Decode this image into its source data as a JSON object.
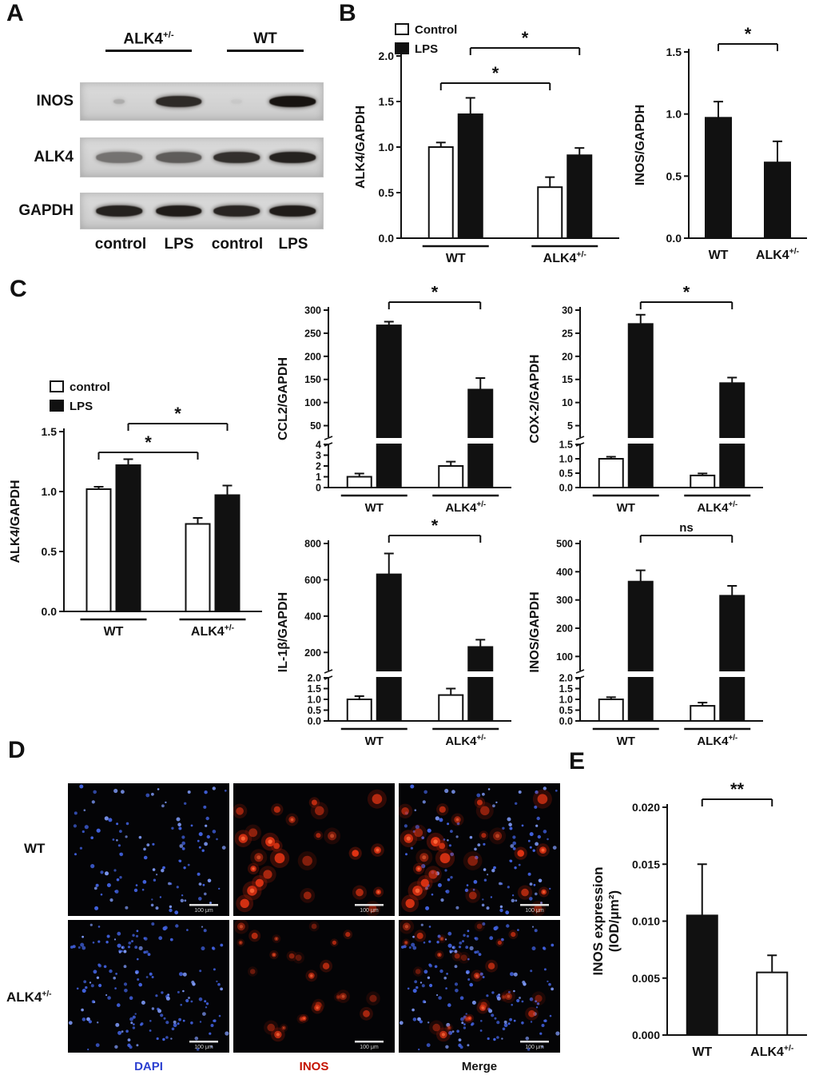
{
  "figure": {
    "background": "#ffffff"
  },
  "panels": {
    "A": {
      "label": "A",
      "groups": [
        "ALK4+/-",
        "WT"
      ],
      "lanes": [
        "control",
        "LPS",
        "control",
        "LPS"
      ],
      "blots": [
        {
          "label": "INOS",
          "bands": [
            0.2,
            0.88,
            0.05,
            1.0
          ]
        },
        {
          "label": "ALK4",
          "bands": [
            0.5,
            0.62,
            0.85,
            0.92
          ]
        },
        {
          "label": "GAPDH",
          "bands": [
            0.92,
            0.95,
            0.9,
            0.95
          ]
        }
      ]
    },
    "B": {
      "label": "B"
    },
    "C": {
      "label": "C"
    },
    "D": {
      "label": "D",
      "rows": [
        {
          "label": "WT",
          "dapi_dots": 110,
          "inos_cells": 26,
          "intensity": 1.0,
          "seed": 9
        },
        {
          "label": "ALK4+/-",
          "dapi_dots": 160,
          "inos_cells": 24,
          "intensity": 0.75,
          "seed": 21
        }
      ],
      "columns": [
        {
          "label": "DAPI",
          "color": "#2b3fd0"
        },
        {
          "label": "INOS",
          "color": "#c41200"
        },
        {
          "label": "Merge",
          "color": "#111111"
        }
      ],
      "scale_label": "100 μm"
    },
    "E": {
      "label": "E"
    }
  },
  "chart_data": [
    {
      "id": "B1",
      "panel": "B",
      "type": "bar",
      "ylabel": "ALK4/GAPDH",
      "legend": [
        {
          "label": "Control",
          "fill": "#ffffff"
        },
        {
          "label": "LPS",
          "fill": "#111111"
        }
      ],
      "groups": [
        "WT",
        "ALK4+/-"
      ],
      "series": [
        {
          "name": "Control",
          "fill": "#ffffff",
          "values": [
            1.0,
            0.56
          ],
          "errors": [
            0.05,
            0.11
          ]
        },
        {
          "name": "LPS",
          "fill": "#111111",
          "values": [
            1.36,
            0.91
          ],
          "errors": [
            0.18,
            0.08
          ]
        }
      ],
      "yticks": [
        "0.0",
        "0.5",
        "1.0",
        "1.5",
        "2.0"
      ],
      "ylim": [
        0,
        2.0
      ],
      "sig": [
        {
          "from": [
            0,
            1
          ],
          "to": [
            1,
            1
          ],
          "label": "*",
          "level": 0
        },
        {
          "from": [
            0,
            0
          ],
          "to": [
            1,
            0
          ],
          "label": "*",
          "level": 1
        }
      ],
      "group_lines": true
    },
    {
      "id": "B2",
      "panel": "B",
      "type": "bar",
      "ylabel": "INOS/GAPDH",
      "groups": [
        "WT",
        "ALK4+/-"
      ],
      "series": [
        {
          "name": "INOS",
          "fills": [
            "#111111",
            "#111111"
          ],
          "values": [
            0.97,
            0.61
          ],
          "errors": [
            0.13,
            0.17
          ]
        }
      ],
      "yticks": [
        "0.0",
        "0.5",
        "1.0",
        "1.5"
      ],
      "ylim": [
        0,
        1.5
      ],
      "sig": [
        {
          "from": [
            0,
            0
          ],
          "to": [
            1,
            0
          ],
          "label": "*",
          "level": 0
        }
      ],
      "group_lines": false
    },
    {
      "id": "C1",
      "panel": "C",
      "type": "bar",
      "ylabel": "ALK4/GAPDH",
      "legend": [
        {
          "label": "control",
          "fill": "#ffffff"
        },
        {
          "label": "LPS",
          "fill": "#111111"
        }
      ],
      "groups": [
        "WT",
        "ALK4+/-"
      ],
      "series": [
        {
          "name": "control",
          "fill": "#ffffff",
          "values": [
            1.02,
            0.73
          ],
          "errors": [
            0.02,
            0.05
          ]
        },
        {
          "name": "LPS",
          "fill": "#111111",
          "values": [
            1.22,
            0.97
          ],
          "errors": [
            0.05,
            0.08
          ]
        }
      ],
      "yticks": [
        "0.0",
        "0.5",
        "1.0",
        "1.5"
      ],
      "ylim": [
        0,
        1.5
      ],
      "sig": [
        {
          "from": [
            0,
            1
          ],
          "to": [
            1,
            1
          ],
          "label": "*",
          "level": 0
        },
        {
          "from": [
            0,
            0
          ],
          "to": [
            1,
            0
          ],
          "label": "*",
          "level": 1
        }
      ],
      "group_lines": true
    },
    {
      "id": "C2",
      "panel": "C",
      "type": "bar",
      "ylabel": "CCL2/GAPDH",
      "groups": [
        "WT",
        "ALK4+/-"
      ],
      "series": [
        {
          "name": "control",
          "fill": "#ffffff",
          "values": [
            1.0,
            2.0
          ],
          "errors": [
            0.3,
            0.4
          ]
        },
        {
          "name": "LPS",
          "fill": "#111111",
          "values": [
            267,
            128
          ],
          "errors": [
            8,
            25
          ]
        }
      ],
      "broken_axis": {
        "lower_ticks": [
          "0",
          "1",
          "2",
          "3",
          "4"
        ],
        "lower_max": 4,
        "upper_ticks": [
          "50",
          "100",
          "150",
          "200",
          "250",
          "300"
        ],
        "upper_base": 25,
        "upper_max": 300
      },
      "sig": [
        {
          "from": [
            0,
            1
          ],
          "to": [
            1,
            1
          ],
          "label": "*",
          "level": 0
        }
      ],
      "group_lines": true
    },
    {
      "id": "C3",
      "panel": "C",
      "type": "bar",
      "ylabel": "COX-2/GAPDH",
      "groups": [
        "WT",
        "ALK4+/-"
      ],
      "series": [
        {
          "name": "control",
          "fill": "#ffffff",
          "values": [
            1.0,
            0.42
          ],
          "errors": [
            0.07,
            0.07
          ]
        },
        {
          "name": "LPS",
          "fill": "#111111",
          "values": [
            27,
            14.2
          ],
          "errors": [
            2,
            1.2
          ]
        }
      ],
      "broken_axis": {
        "lower_ticks": [
          "0.0",
          "0.5",
          "1.0",
          "1.5"
        ],
        "lower_max": 1.5,
        "upper_ticks": [
          "5",
          "10",
          "15",
          "20",
          "25",
          "30"
        ],
        "upper_base": 2.5,
        "upper_max": 30
      },
      "sig": [
        {
          "from": [
            0,
            1
          ],
          "to": [
            1,
            1
          ],
          "label": "*",
          "level": 0
        }
      ],
      "group_lines": true
    },
    {
      "id": "C4",
      "panel": "C",
      "type": "bar",
      "ylabel": "IL-1β/GAPDH",
      "groups": [
        "WT",
        "ALK4+/-"
      ],
      "series": [
        {
          "name": "control",
          "fill": "#ffffff",
          "values": [
            1.0,
            1.2
          ],
          "errors": [
            0.15,
            0.3
          ]
        },
        {
          "name": "LPS",
          "fill": "#111111",
          "values": [
            630,
            230
          ],
          "errors": [
            115,
            40
          ]
        }
      ],
      "broken_axis": {
        "lower_ticks": [
          "0.0",
          "0.5",
          "1.0",
          "1.5",
          "2.0"
        ],
        "lower_max": 2.0,
        "upper_ticks": [
          "200",
          "400",
          "600",
          "800"
        ],
        "upper_base": 100,
        "upper_max": 800
      },
      "sig": [
        {
          "from": [
            0,
            1
          ],
          "to": [
            1,
            1
          ],
          "label": "*",
          "level": 0
        }
      ],
      "group_lines": true
    },
    {
      "id": "C5",
      "panel": "C",
      "type": "bar",
      "ylabel": "INOS/GAPDH",
      "groups": [
        "WT",
        "ALK4+/-"
      ],
      "series": [
        {
          "name": "control",
          "fill": "#ffffff",
          "values": [
            1.0,
            0.7
          ],
          "errors": [
            0.1,
            0.15
          ]
        },
        {
          "name": "LPS",
          "fill": "#111111",
          "values": [
            365,
            315
          ],
          "errors": [
            40,
            35
          ]
        }
      ],
      "broken_axis": {
        "lower_ticks": [
          "0.0",
          "0.5",
          "1.0",
          "1.5",
          "2.0"
        ],
        "lower_max": 2.0,
        "upper_ticks": [
          "100",
          "200",
          "300",
          "400",
          "500"
        ],
        "upper_base": 50,
        "upper_max": 500
      },
      "sig": [
        {
          "from": [
            0,
            1
          ],
          "to": [
            1,
            1
          ],
          "label": "ns",
          "level": 0
        }
      ],
      "group_lines": true
    },
    {
      "id": "E1",
      "panel": "E",
      "type": "bar",
      "ylabel": [
        "INOS expression",
        "(IOD/μm²)"
      ],
      "groups": [
        "WT",
        "ALK4+/-"
      ],
      "series": [
        {
          "name": "INOS expression",
          "fills": [
            "#111111",
            "#ffffff"
          ],
          "values": [
            0.0105,
            0.0055
          ],
          "errors": [
            0.0045,
            0.0015
          ]
        }
      ],
      "yticks": [
        "0.000",
        "0.005",
        "0.010",
        "0.015",
        "0.020"
      ],
      "ylim": [
        0,
        0.02
      ],
      "sig": [
        {
          "from": [
            0,
            0
          ],
          "to": [
            1,
            0
          ],
          "label": "**",
          "level": 0
        }
      ],
      "group_lines": false
    }
  ]
}
